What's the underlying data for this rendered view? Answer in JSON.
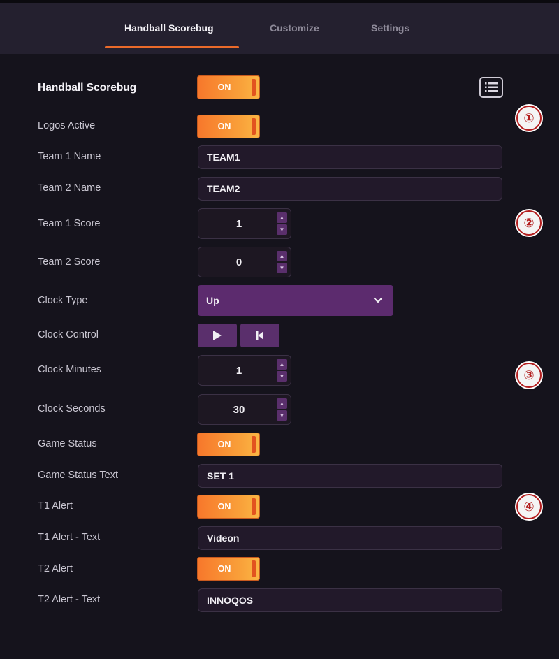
{
  "tabs": [
    {
      "label": "Handball Scorebug"
    },
    {
      "label": "Customize"
    },
    {
      "label": "Settings"
    }
  ],
  "header": {
    "title": "Handball Scorebug",
    "toggle": "ON"
  },
  "fields": {
    "logos_active": {
      "label": "Logos Active",
      "value": "ON"
    },
    "team1_name": {
      "label": "Team 1 Name",
      "value": "TEAM1"
    },
    "team2_name": {
      "label": "Team 2 Name",
      "value": "TEAM2"
    },
    "team1_score": {
      "label": "Team 1 Score",
      "value": "1"
    },
    "team2_score": {
      "label": "Team 2 Score",
      "value": "0"
    },
    "clock_type": {
      "label": "Clock Type",
      "value": "Up"
    },
    "clock_control": {
      "label": "Clock Control"
    },
    "clock_minutes": {
      "label": "Clock Minutes",
      "value": "1"
    },
    "clock_seconds": {
      "label": "Clock Seconds",
      "value": "30"
    },
    "game_status": {
      "label": "Game Status",
      "value": "ON"
    },
    "game_status_text": {
      "label": "Game Status Text",
      "value": "SET 1"
    },
    "t1_alert": {
      "label": "T1 Alert",
      "value": "ON"
    },
    "t1_alert_text": {
      "label": "T1 Alert - Text",
      "value": "Videon"
    },
    "t2_alert": {
      "label": "T2 Alert",
      "value": "ON"
    },
    "t2_alert_text": {
      "label": "T2 Alert - Text",
      "value": "INNOQOS"
    }
  },
  "badges": [
    "①",
    "②",
    "③",
    "④"
  ],
  "icons": {
    "list": "list-icon",
    "spin_up": "caret-up-icon",
    "spin_down": "caret-down-icon",
    "chevron": "chevron-down-icon",
    "play": "play-icon",
    "reset": "skip-back-icon"
  },
  "colors": {
    "accent_orange": "#f7772b",
    "accent_purple": "#5a2f6c",
    "tab_underline": "#ea6a2a",
    "badge_red": "#b31e1e"
  }
}
